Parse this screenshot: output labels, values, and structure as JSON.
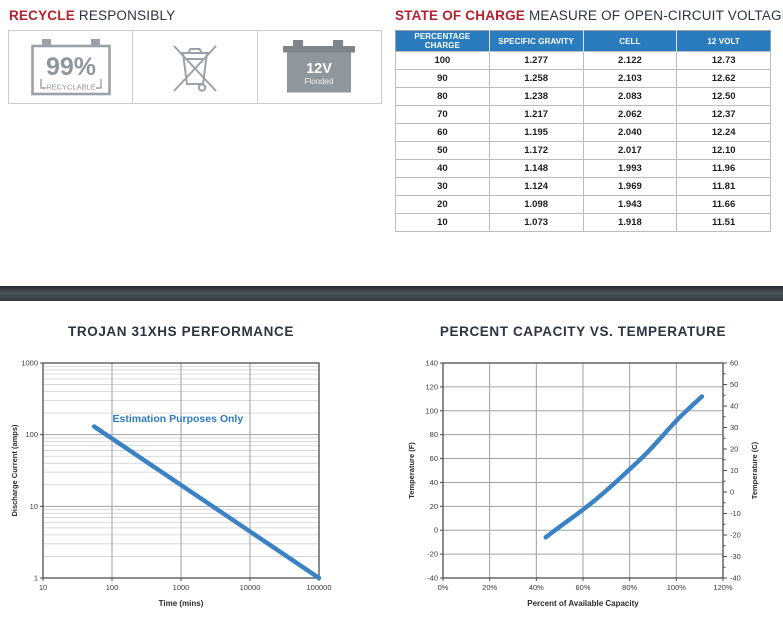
{
  "recycle": {
    "title_accent": "RECYCLE",
    "title_rest": "RESPONSIBLY",
    "badges": {
      "recyclable": {
        "value": "99%",
        "label": "RECYCLABLE"
      },
      "flooded": {
        "value": "12V",
        "label": "Flooded"
      }
    }
  },
  "state_of_charge": {
    "title_accent": "STATE OF CHARGE",
    "title_rest": "MEASURE OF OPEN-CIRCUIT VOLTAGE",
    "columns": [
      "PERCENTAGE CHARGE",
      "SPECIFIC GRAVITY",
      "CELL",
      "12 VOLT"
    ],
    "rows": [
      [
        "100",
        "1.277",
        "2.122",
        "12.73"
      ],
      [
        "90",
        "1.258",
        "2.103",
        "12.62"
      ],
      [
        "80",
        "1.238",
        "2.083",
        "12.50"
      ],
      [
        "70",
        "1.217",
        "2.062",
        "12.37"
      ],
      [
        "60",
        "1.195",
        "2.040",
        "12.24"
      ],
      [
        "50",
        "1.172",
        "2.017",
        "12.10"
      ],
      [
        "40",
        "1.148",
        "1.993",
        "11.96"
      ],
      [
        "30",
        "1.124",
        "1.969",
        "11.81"
      ],
      [
        "20",
        "1.098",
        "1.943",
        "11.66"
      ],
      [
        "10",
        "1.073",
        "1.918",
        "11.51"
      ]
    ]
  },
  "colors": {
    "accent_red": "#b5212e",
    "heading_navy": "#2b3440",
    "table_header_blue": "#2b7cbf",
    "chart_line_blue": "#3b82c4",
    "annotation_blue": "#2e7ac0",
    "icon_gray": "#9aa1a8",
    "grid_light": "#cfcfcf",
    "grid_major": "#a0a0a0",
    "frame_gray": "#4d4d4d"
  },
  "chart_data": [
    {
      "type": "line",
      "title": "TROJAN 31XHS PERFORMANCE",
      "xlabel": "Time (mins)",
      "ylabel": "Discharge Current (amps)",
      "xscale": "log",
      "yscale": "log",
      "xlim": [
        10,
        100000
      ],
      "ylim": [
        1,
        1000
      ],
      "x_ticks": [
        "10",
        "100",
        "1000",
        "10000",
        "100000"
      ],
      "y_ticks": [
        "1",
        "10",
        "100",
        "1000"
      ],
      "grid": true,
      "legend": "none",
      "annotation": {
        "text": "Estimation Purposes Only",
        "x": 900,
        "y": 150
      },
      "series": [
        {
          "name": "discharge-current",
          "points": [
            [
              55,
              130
            ],
            [
              100000,
              1
            ]
          ]
        }
      ]
    },
    {
      "type": "line",
      "title": "PERCENT CAPACITY VS. TEMPERATURE",
      "xlabel": "Percent of Available Capacity",
      "ylabel_left": "Temperature (F)",
      "ylabel_right": "Temperature (C)",
      "xlim": [
        0,
        120
      ],
      "ylim_left": [
        -40,
        140
      ],
      "ylim_right": [
        -40,
        60
      ],
      "x_tick_values": [
        0,
        20,
        40,
        60,
        80,
        100,
        120
      ],
      "x_tick_labels": [
        "0%",
        "20%",
        "40%",
        "60%",
        "80%",
        "100%",
        "120%"
      ],
      "y_ticks_left": [
        -40,
        -20,
        0,
        20,
        40,
        60,
        80,
        100,
        120,
        140
      ],
      "y_ticks_right": [
        -40,
        -30,
        -20,
        -10,
        0,
        10,
        20,
        30,
        40,
        50,
        60
      ],
      "grid": true,
      "legend": "none",
      "series": [
        {
          "name": "percent-capacity",
          "points": [
            [
              44,
              -6
            ],
            [
              50,
              3
            ],
            [
              60,
              17
            ],
            [
              70,
              33
            ],
            [
              80,
              51
            ],
            [
              85,
              60
            ],
            [
              90,
              70
            ],
            [
              100,
              92
            ],
            [
              106,
              103
            ],
            [
              111,
              112
            ]
          ]
        }
      ]
    }
  ]
}
